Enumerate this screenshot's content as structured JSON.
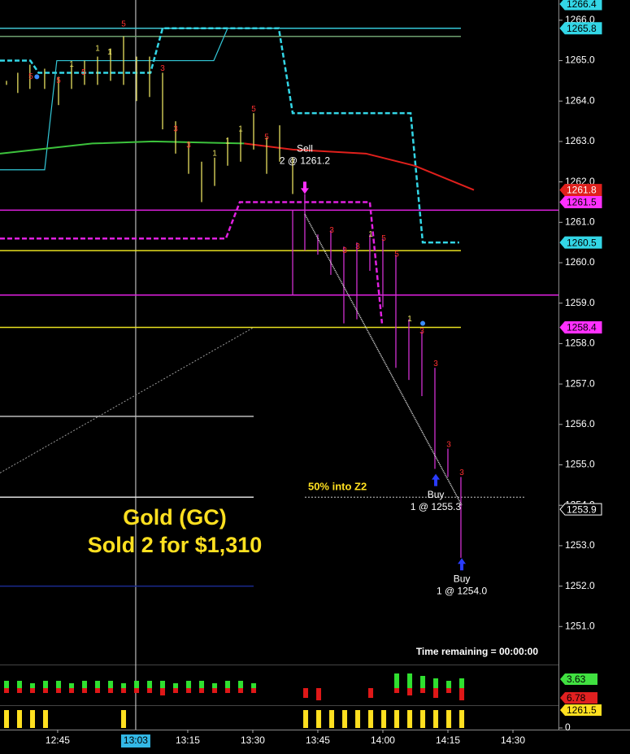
{
  "chart_data": {
    "type": "price-chart",
    "title": "Gold (GC)",
    "subtitle": "Sold 2 for $1,310",
    "zone_label": "50% into Z2",
    "timer": "Time remaining = 00:00:00",
    "xlim": [
      751.7,
      880.5
    ],
    "xticks": [
      {
        "value": 765,
        "label": "12:45"
      },
      {
        "value": 795,
        "label": "13:15"
      },
      {
        "value": 810,
        "label": "13:30"
      },
      {
        "value": 825,
        "label": "13:45"
      },
      {
        "value": 840,
        "label": "14:00"
      },
      {
        "value": 855,
        "label": "14:15"
      },
      {
        "value": 870,
        "label": "14:30"
      }
    ],
    "cursor": {
      "value": 783,
      "label": "13:03"
    },
    "ylim": [
      1250.1,
      1266.5
    ],
    "yticks": [
      {
        "value": 1266,
        "label": "1266.0"
      },
      {
        "value": 1265,
        "label": "1265.0"
      },
      {
        "value": 1264,
        "label": "1264.0"
      },
      {
        "value": 1263,
        "label": "1263.0"
      },
      {
        "value": 1262,
        "label": "1262.0"
      },
      {
        "value": 1261,
        "label": "1261.0"
      },
      {
        "value": 1260,
        "label": "1260.0"
      },
      {
        "value": 1259,
        "label": "1259.0"
      },
      {
        "value": 1258,
        "label": "1258.0"
      },
      {
        "value": 1257,
        "label": "1257.0"
      },
      {
        "value": 1256,
        "label": "1256.0"
      },
      {
        "value": 1255,
        "label": "1255.0"
      },
      {
        "value": 1254,
        "label": "1254.0"
      },
      {
        "value": 1253,
        "label": "1253.0"
      },
      {
        "value": 1252,
        "label": "1252.0"
      },
      {
        "value": 1251,
        "label": "1251.0"
      }
    ],
    "levels": [
      {
        "price": 1265.8,
        "from": 751.7,
        "to": 858.0,
        "color": "#3fc4d0"
      },
      {
        "price": 1265.6,
        "from": 751.7,
        "to": 858.0,
        "color": "#6fa070"
      },
      {
        "price": 1261.3,
        "from": 751.7,
        "to": 880.5,
        "color": "#e020e0"
      },
      {
        "price": 1260.3,
        "from": 751.7,
        "to": 858.0,
        "color": "#e8e020"
      },
      {
        "price": 1259.2,
        "from": 751.7,
        "to": 880.5,
        "color": "#e020e0"
      },
      {
        "price": 1258.4,
        "from": 751.7,
        "to": 858.0,
        "color": "#e8e020"
      },
      {
        "price": 1256.2,
        "from": 751.7,
        "to": 810.2,
        "color": "#bbbbbb"
      },
      {
        "price": 1254.2,
        "from": 751.7,
        "to": 810.2,
        "color": "#dddddd"
      },
      {
        "price": 1252.0,
        "from": 751.7,
        "to": 810.2,
        "color": "#1a2a90"
      }
    ],
    "zone_line": {
      "price": 1254.2,
      "from": 822.0,
      "to": 872.7
    },
    "trendlines": [
      {
        "x": [
          751.7,
          810.2
        ],
        "y": [
          1254.8,
          1258.4
        ],
        "color": "#9a9a9a"
      }
    ],
    "steps": [
      {
        "color": "#33d6e6",
        "dash": true,
        "x": [
          751.7,
          758.7,
          760.6,
          786.4,
          789.2,
          816.0,
          819.2,
          846.4,
          849.2,
          857.6
        ],
        "y": [
          1265.0,
          1265.0,
          1264.7,
          1264.7,
          1265.8,
          1265.8,
          1263.7,
          1263.7,
          1260.5,
          1260.5
        ]
      },
      {
        "color": "#33c8d8",
        "dash": false,
        "x": [
          751.7,
          762.0,
          764.8,
          801.0,
          804.2,
          857.6
        ],
        "y": [
          1262.3,
          1262.3,
          1265.0,
          1265.0,
          1265.8,
          1265.8
        ]
      },
      {
        "color": "#e020e0",
        "dash": true,
        "x": [
          751.7,
          803.8,
          807.0,
          837.0,
          839.8
        ],
        "y": [
          1260.6,
          1260.6,
          1261.5,
          1261.5,
          1258.5
        ]
      }
    ],
    "moving_averages": [
      {
        "color": "#3cc23c",
        "x": [
          751.7,
          773.0,
          787.0,
          808.0
        ],
        "y": [
          1262.7,
          1262.95,
          1263.0,
          1262.95
        ]
      },
      {
        "color": "#e0201c",
        "x": [
          808.0,
          819.2,
          836.1,
          847.3,
          861.0
        ],
        "y": [
          1262.95,
          1262.8,
          1262.7,
          1262.4,
          1261.8
        ]
      }
    ],
    "bars": [
      {
        "color": "#e8e060",
        "x": [
          753.2,
          755.8,
          758.6,
          762.0,
          765.2,
          768.2,
          771.2,
          774.2,
          777.2,
          780.2,
          783.2,
          786.2,
          789.2,
          792.2,
          795.2,
          798.2,
          801.2,
          804.2,
          807.2,
          810.2,
          813.2,
          816.2,
          819.2
        ],
        "high": [
          1264.5,
          1264.7,
          1264.9,
          1264.8,
          1264.6,
          1264.9,
          1265.0,
          1265.1,
          1265.3,
          1265.6,
          1265.1,
          1265.1,
          1264.7,
          1263.5,
          1263.0,
          1262.5,
          1262.6,
          1263.1,
          1263.3,
          1263.7,
          1263.1,
          1263.4,
          1262.6
        ],
        "low": [
          1264.4,
          1264.2,
          1264.3,
          1264.3,
          1263.9,
          1264.3,
          1264.4,
          1264.4,
          1264.5,
          1264.4,
          1264.0,
          1264.1,
          1263.3,
          1262.7,
          1262.2,
          1261.5,
          1261.9,
          1262.4,
          1262.5,
          1262.8,
          1262.2,
          1262.5,
          1261.7
        ]
      },
      {
        "color": "#d030d0",
        "x": [
          819.2,
          822.0,
          825.0,
          828.0,
          831.0,
          834.0,
          837.0,
          840.0,
          843.0,
          846.0,
          849.0,
          852.0,
          855.0,
          858.0
        ],
        "high": [
          1261.3,
          1261.7,
          1260.7,
          1260.8,
          1260.4,
          1260.5,
          1260.7,
          1260.6,
          1260.2,
          1258.6,
          1258.3,
          1257.4,
          1255.4,
          1254.7
        ],
        "low": [
          1259.2,
          1260.3,
          1260.2,
          1259.7,
          1258.5,
          1258.6,
          1259.8,
          1258.9,
          1257.4,
          1257.1,
          1256.7,
          1254.9,
          1254.7,
          1252.7
        ]
      }
    ],
    "bar_labels": [
      {
        "x": 780.2,
        "price": 1265.9,
        "text": "5",
        "color": "#ff3030"
      },
      {
        "x": 774.2,
        "price": 1265.3,
        "text": "1",
        "color": "#e8e060"
      },
      {
        "x": 777.0,
        "price": 1265.2,
        "text": "1",
        "color": "#e8e060"
      },
      {
        "x": 758.8,
        "price": 1264.6,
        "text": "5",
        "color": "#ff3030"
      },
      {
        "x": 771.0,
        "price": 1264.7,
        "text": "5",
        "color": "#ff3030"
      },
      {
        "x": 765.2,
        "price": 1264.5,
        "text": "5",
        "color": "#ff3030"
      },
      {
        "x": 768.2,
        "price": 1264.9,
        "text": "1",
        "color": "#e8e060"
      },
      {
        "x": 789.2,
        "price": 1264.8,
        "text": "3",
        "color": "#ff3030"
      },
      {
        "x": 792.2,
        "price": 1263.3,
        "text": "3",
        "color": "#ff3030"
      },
      {
        "x": 795.2,
        "price": 1262.9,
        "text": "3",
        "color": "#ff3030"
      },
      {
        "x": 810.2,
        "price": 1263.8,
        "text": "5",
        "color": "#ff3030"
      },
      {
        "x": 813.2,
        "price": 1263.1,
        "text": "5",
        "color": "#ff3030"
      },
      {
        "x": 801.2,
        "price": 1262.7,
        "text": "1",
        "color": "#e8e060"
      },
      {
        "x": 804.2,
        "price": 1263.0,
        "text": "1",
        "color": "#e8e060"
      },
      {
        "x": 807.2,
        "price": 1263.3,
        "text": "1",
        "color": "#e8e060"
      },
      {
        "x": 828.2,
        "price": 1260.8,
        "text": "3",
        "color": "#ff3030"
      },
      {
        "x": 831.2,
        "price": 1260.3,
        "text": "3",
        "color": "#ff3030"
      },
      {
        "x": 834.2,
        "price": 1260.4,
        "text": "3",
        "color": "#ff3030"
      },
      {
        "x": 837.2,
        "price": 1260.7,
        "text": "1",
        "color": "#e8e060"
      },
      {
        "x": 840.2,
        "price": 1260.6,
        "text": "5",
        "color": "#ff3030"
      },
      {
        "x": 843.2,
        "price": 1260.2,
        "text": "5",
        "color": "#ff3030"
      },
      {
        "x": 846.2,
        "price": 1258.6,
        "text": "1",
        "color": "#e8e060"
      },
      {
        "x": 849.0,
        "price": 1258.3,
        "text": "3",
        "color": "#ff3030"
      },
      {
        "x": 852.2,
        "price": 1257.5,
        "text": "3",
        "color": "#ff3030"
      },
      {
        "x": 855.2,
        "price": 1255.5,
        "text": "3",
        "color": "#ff3030"
      },
      {
        "x": 858.2,
        "price": 1254.8,
        "text": "3",
        "color": "#ff3030"
      }
    ],
    "dots": [
      {
        "x": 760.2,
        "price": 1264.6
      },
      {
        "x": 849.2,
        "price": 1258.5
      }
    ],
    "trades": [
      {
        "side": "Sell",
        "text": "2 @ 1261.2",
        "x": 822.0,
        "price": 1261.2,
        "color": "#ff30ff"
      },
      {
        "side": "Buy",
        "text": "1 @ 1255.3",
        "x": 852.2,
        "price": 1255.3,
        "color": "#2a3cff"
      },
      {
        "side": "Buy",
        "text": "1 @ 1254.0",
        "x": 858.2,
        "price": 1254.0,
        "color": "#2a3cff"
      }
    ],
    "price_labels": [
      {
        "price": 1266.4,
        "color": "#33d6e6",
        "text_color": "#000000"
      },
      {
        "price": 1265.8,
        "color": "#33d6e6",
        "text_color": "#000000"
      },
      {
        "price": 1261.8,
        "color": "#e0201c",
        "text_color": "#ffffff"
      },
      {
        "price": 1261.5,
        "color": "#ff30ff",
        "text_color": "#000000"
      },
      {
        "price": 1260.5,
        "color": "#33d6e6",
        "text_color": "#000000"
      },
      {
        "price": 1258.4,
        "color": "#ff30ff",
        "text_color": "#000000"
      },
      {
        "price": 1253.9,
        "color": "#000000",
        "text_color": "#ffffff"
      }
    ],
    "delta_pane": {
      "ylim": [
        -8,
        8
      ],
      "x": [
        753.2,
        756.2,
        759.2,
        762.2,
        765.2,
        768.2,
        771.2,
        774.2,
        777.2,
        780.2,
        783.2,
        786.2,
        789.2,
        792.2,
        795.2,
        798.2,
        801.2,
        804.2,
        807.2,
        810.2,
        813.2,
        816.2,
        819.2,
        822.2,
        825.2,
        828.2,
        831.2,
        834.2,
        837.2,
        840.2,
        843.2,
        846.2,
        849.2,
        852.2,
        855.2,
        858.2
      ],
      "up": [
        3,
        3,
        2,
        3,
        3,
        2,
        3,
        3,
        3,
        2,
        3,
        3,
        3,
        2,
        3,
        3,
        2,
        3,
        3,
        2,
        0,
        0,
        0,
        0,
        0,
        0,
        0,
        0,
        0,
        0,
        6,
        6,
        5,
        4,
        3,
        4
      ],
      "down": [
        -2,
        -2,
        -2,
        -2,
        -2,
        -2,
        -2,
        -2,
        -2,
        -2,
        -2,
        -2,
        -3,
        -2,
        -2,
        -2,
        -2,
        -2,
        -2,
        -2,
        0,
        0,
        0,
        -4,
        -5,
        0,
        0,
        0,
        -4,
        0,
        -2,
        -3,
        -2,
        -4,
        -2,
        -5
      ],
      "labels": [
        {
          "value": 3.63,
          "color": "#40e040"
        },
        {
          "value": 6.78,
          "color": "#e02020"
        }
      ]
    },
    "count_pane": {
      "ylim": [
        0,
        1
      ],
      "yticks": [
        0
      ],
      "label": 1261.5,
      "x": [
        753.2,
        756.2,
        759.2,
        762.2,
        765.2,
        768.2,
        771.2,
        774.2,
        777.2,
        780.2,
        783.2,
        786.2,
        789.2,
        792.2,
        795.2,
        798.2,
        801.2,
        804.2,
        807.2,
        810.2,
        813.2,
        816.2,
        819.2,
        822.2,
        825.2,
        828.2,
        831.2,
        834.2,
        837.2,
        840.2,
        843.2,
        846.2,
        849.2,
        852.2,
        855.2,
        858.2
      ],
      "values": [
        1,
        1,
        1,
        1,
        0,
        0,
        0,
        0,
        0,
        1,
        0,
        0,
        0,
        0,
        0,
        0,
        0,
        0,
        0,
        0,
        0,
        0,
        0,
        1,
        1,
        1,
        1,
        1,
        1,
        1,
        1,
        1,
        1,
        1,
        1,
        1
      ]
    }
  }
}
